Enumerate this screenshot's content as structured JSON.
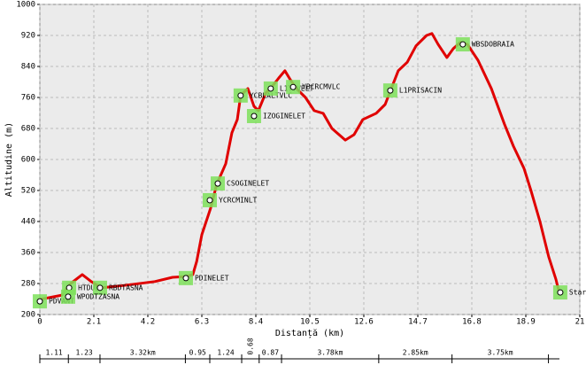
{
  "chart_data": {
    "type": "line",
    "x_label": "Distanță (km)",
    "y_label": "Altitudine (m)",
    "xlim": [
      0,
      21
    ],
    "xticks": [
      0,
      2.1,
      4.2,
      6.3,
      8.4,
      10.5,
      12.6,
      14.7,
      16.8,
      18.9,
      21
    ],
    "ylim": [
      200,
      1000
    ],
    "yticks": [
      200,
      280,
      360,
      440,
      520,
      600,
      680,
      760,
      840,
      920,
      1000
    ],
    "grid": true,
    "color": "#e00000",
    "x": [
      0,
      0.86,
      1.2,
      1.65,
      2.0,
      2.4,
      3.27,
      4.47,
      5.16,
      5.68,
      5.95,
      6.1,
      6.3,
      6.64,
      6.88,
      7.23,
      7.47,
      7.68,
      7.81,
      8.09,
      8.33,
      8.5,
      8.78,
      9.02,
      9.29,
      9.53,
      9.74,
      9.98,
      10.33,
      10.67,
      11.02,
      11.36,
      11.88,
      12.22,
      12.56,
      13.08,
      13.43,
      13.67,
      13.94,
      14.29,
      14.63,
      15.04,
      15.25,
      15.49,
      15.83,
      16.08,
      16.35,
      16.63,
      17.04,
      17.56,
      18.07,
      18.42,
      18.83,
      19.1,
      19.45,
      19.79,
      20.07,
      20.2
    ],
    "values": [
      239,
      250,
      280,
      303,
      285,
      269,
      275,
      285,
      296,
      298,
      303,
      337,
      406,
      474,
      536,
      589,
      669,
      703,
      765,
      783,
      737,
      726,
      771,
      787,
      810,
      829,
      806,
      783,
      760,
      726,
      719,
      680,
      650,
      664,
      703,
      719,
      742,
      783,
      829,
      851,
      893,
      920,
      925,
      897,
      863,
      886,
      902,
      897,
      856,
      783,
      691,
      634,
      577,
      520,
      440,
      349,
      291,
      257
    ],
    "waypoints": [
      {
        "label": "PDVANT",
        "x": 0,
        "y": 234
      },
      {
        "label": "HTDUL",
        "x": 1.14,
        "y": 269
      },
      {
        "label": "RBDTASNA",
        "x": 2.34,
        "y": 269
      },
      {
        "label": "WPODTZASNA",
        "x": 1.1,
        "y": 246
      },
      {
        "label": "PDINELET",
        "x": 5.68,
        "y": 294
      },
      {
        "label": "YCRCMINLT",
        "x": 6.61,
        "y": 495
      },
      {
        "label": "CSOGINELET",
        "x": 6.92,
        "y": 538
      },
      {
        "label": "YCBLALTVLC",
        "x": 7.81,
        "y": 765
      },
      {
        "label": "IZOGINELET",
        "x": 8.33,
        "y": 712
      },
      {
        "label": "L1TTVELT",
        "x": 8.98,
        "y": 783
      },
      {
        "label": "YBCRCMVLC",
        "x": 9.85,
        "y": 787
      },
      {
        "label": "L1PRISACIN",
        "x": 13.63,
        "y": 778
      },
      {
        "label": "WBSDOBRAIA",
        "x": 16.45,
        "y": 897
      },
      {
        "label": "Start",
        "x": 20.24,
        "y": 257
      }
    ],
    "segments": [
      1.11,
      1.23,
      {
        "value": 3.32,
        "label": "3.32km"
      },
      0.95,
      1.24,
      0.68,
      0.87,
      {
        "value": 3.78,
        "label": "3.78km"
      },
      {
        "value": 2.85,
        "label": "2.85km"
      },
      {
        "value": 3.75,
        "label": "3.75km"
      }
    ]
  }
}
